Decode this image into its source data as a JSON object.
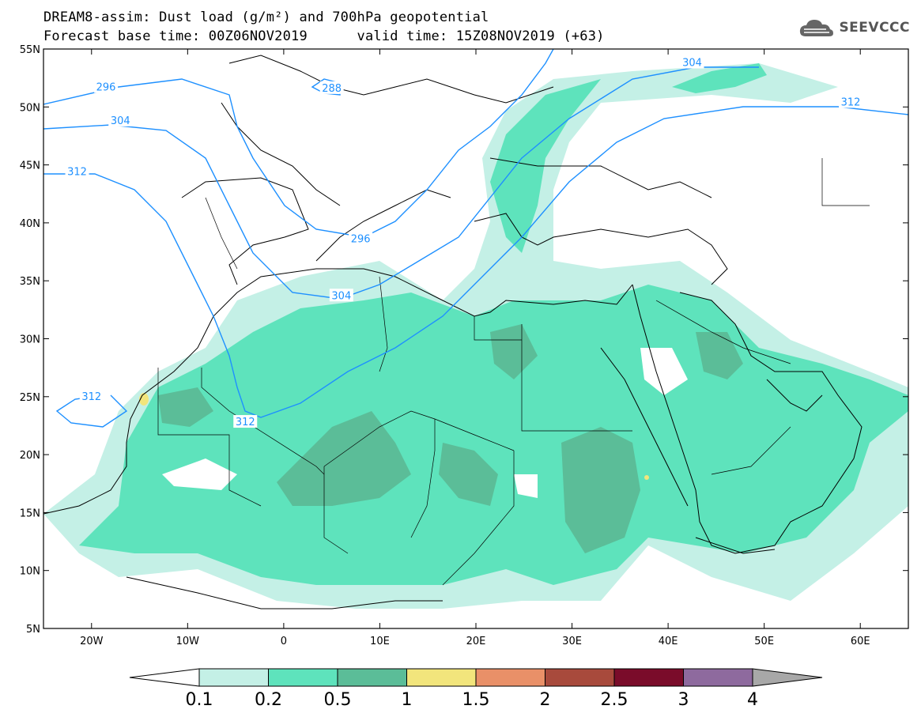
{
  "title": {
    "line1": "DREAM8-assim: Dust load (g/m²) and 700hPa geopotential",
    "line2": "Forecast base time: 00Z06NOV2019      valid time: 15Z08NOV2019 (+63)"
  },
  "logo": {
    "text": "SEEVCCC",
    "icon": "cloud-icon"
  },
  "map": {
    "lon_range": [
      -25,
      65
    ],
    "lat_range": [
      5,
      55
    ],
    "lon_ticks": [
      {
        "value": -20,
        "label": "20W"
      },
      {
        "value": -10,
        "label": "10W"
      },
      {
        "value": 0,
        "label": "0"
      },
      {
        "value": 10,
        "label": "10E"
      },
      {
        "value": 20,
        "label": "20E"
      },
      {
        "value": 30,
        "label": "30E"
      },
      {
        "value": 40,
        "label": "40E"
      },
      {
        "value": 50,
        "label": "50E"
      },
      {
        "value": 60,
        "label": "60E"
      }
    ],
    "lat_ticks": [
      {
        "value": 55,
        "label": "55N"
      },
      {
        "value": 50,
        "label": "50N"
      },
      {
        "value": 45,
        "label": "45N"
      },
      {
        "value": 40,
        "label": "40N"
      },
      {
        "value": 35,
        "label": "35N"
      },
      {
        "value": 30,
        "label": "30N"
      },
      {
        "value": 25,
        "label": "25N"
      },
      {
        "value": 20,
        "label": "20N"
      },
      {
        "value": 15,
        "label": "15N"
      },
      {
        "value": 10,
        "label": "10N"
      },
      {
        "value": 5,
        "label": "5N"
      }
    ],
    "contour_color": "#1E90FF",
    "contour_labels": [
      {
        "label": "296",
        "lon": -18.5,
        "lat": 51.7
      },
      {
        "label": "304",
        "lon": -17.0,
        "lat": 48.8
      },
      {
        "label": "312",
        "lon": -21.5,
        "lat": 44.4
      },
      {
        "label": "288",
        "lon": 5.0,
        "lat": 51.6
      },
      {
        "label": "296",
        "lon": 8.0,
        "lat": 38.6
      },
      {
        "label": "304",
        "lon": 6.0,
        "lat": 33.7
      },
      {
        "label": "304",
        "lon": 42.5,
        "lat": 53.8
      },
      {
        "label": "312",
        "lon": 59.0,
        "lat": 50.4
      },
      {
        "label": "312",
        "lon": -20.0,
        "lat": 25.0
      },
      {
        "label": "312",
        "lon": -4.0,
        "lat": 22.8
      }
    ]
  },
  "colorbar": {
    "levels": [
      "0.1",
      "0.2",
      "0.5",
      "1",
      "1.5",
      "2",
      "2.5",
      "3",
      "4"
    ],
    "colors": [
      "#C4F0E6",
      "#5EE3BC",
      "#5BBD98",
      "#F2E57C",
      "#E99068",
      "#A84A3C",
      "#7A0C2A",
      "#8E6A9E"
    ],
    "under_color": "#FFFFFF",
    "over_color": "#A8A8A8"
  },
  "dust_colors": {
    "level1": "#C4F0E6",
    "level2": "#5EE3BC",
    "level3": "#5BBD98",
    "level4": "#F2E57C"
  }
}
